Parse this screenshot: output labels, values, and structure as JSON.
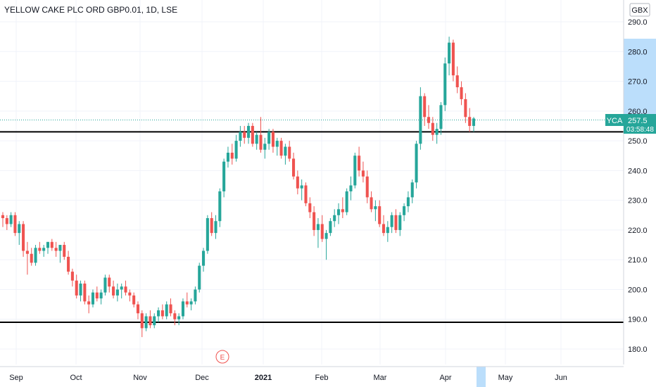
{
  "chart_data": {
    "type": "candlestick",
    "title": "YELLOW CAKE PLC ORD GBP0.01, 1D, LSE",
    "currency": "GBX",
    "ticker_badge": "YCA",
    "last_price": "257.5",
    "countdown": "03:58:48",
    "ylim": [
      175,
      295
    ],
    "y_ticks": [
      "180.0",
      "190.0",
      "200.0",
      "210.0",
      "220.0",
      "230.0",
      "240.0",
      "250.0",
      "260.0",
      "270.0",
      "280.0",
      "290.0"
    ],
    "x_labels": [
      "Sep",
      "Oct",
      "Nov",
      "Dec",
      "2021",
      "Feb",
      "Mar",
      "Apr",
      "May",
      "Jun"
    ],
    "horizontal_levels": [
      253.0,
      189.0
    ],
    "earnings_marker": "E",
    "grid": true,
    "colors": {
      "up": "#26a69a",
      "down": "#ef5350",
      "level": "#000000",
      "badge": "#26a69a",
      "axis_highlight": "#bbdefb"
    },
    "candles": [
      [
        225,
        226,
        221,
        224
      ],
      [
        224,
        225,
        220,
        222
      ],
      [
        222,
        226,
        221,
        225
      ],
      [
        225,
        226,
        218,
        219
      ],
      [
        219,
        223,
        215,
        222
      ],
      [
        222,
        223,
        211,
        213
      ],
      [
        213,
        216,
        205,
        212
      ],
      [
        212,
        214,
        208,
        209
      ],
      [
        209,
        215,
        208,
        214
      ],
      [
        214,
        216,
        212,
        213
      ],
      [
        213,
        215,
        211,
        214
      ],
      [
        214,
        216,
        212,
        216
      ],
      [
        216,
        217,
        213,
        214
      ],
      [
        214,
        216,
        211,
        213
      ],
      [
        213,
        215,
        209,
        215
      ],
      [
        215,
        216,
        210,
        211
      ],
      [
        211,
        213,
        205,
        206
      ],
      [
        206,
        207,
        201,
        203
      ],
      [
        203,
        205,
        197,
        198
      ],
      [
        198,
        203,
        196,
        202
      ],
      [
        202,
        203,
        195,
        196
      ],
      [
        196,
        198,
        192,
        195
      ],
      [
        195,
        200,
        194,
        199
      ],
      [
        199,
        201,
        196,
        197
      ],
      [
        197,
        200,
        195,
        199
      ],
      [
        199,
        205,
        198,
        204
      ],
      [
        204,
        205,
        199,
        201
      ],
      [
        201,
        203,
        197,
        198
      ],
      [
        198,
        202,
        196,
        200
      ],
      [
        200,
        202,
        197,
        201
      ],
      [
        201,
        203,
        198,
        199
      ],
      [
        199,
        200,
        196,
        198
      ],
      [
        198,
        199,
        194,
        195
      ],
      [
        195,
        196,
        190,
        192
      ],
      [
        192,
        193,
        184,
        187
      ],
      [
        187,
        192,
        186,
        191
      ],
      [
        191,
        193,
        187,
        188
      ],
      [
        188,
        192,
        187,
        191
      ],
      [
        191,
        194,
        189,
        193
      ],
      [
        193,
        195,
        190,
        191
      ],
      [
        191,
        196,
        190,
        195
      ],
      [
        195,
        197,
        191,
        192
      ],
      [
        192,
        193,
        188,
        190
      ],
      [
        190,
        192,
        188,
        191
      ],
      [
        191,
        197,
        190,
        196
      ],
      [
        196,
        199,
        194,
        195
      ],
      [
        195,
        197,
        193,
        196
      ],
      [
        196,
        201,
        195,
        200
      ],
      [
        200,
        209,
        199,
        208
      ],
      [
        208,
        214,
        206,
        213
      ],
      [
        213,
        225,
        212,
        224
      ],
      [
        224,
        226,
        218,
        219
      ],
      [
        219,
        225,
        217,
        223
      ],
      [
        223,
        234,
        221,
        233
      ],
      [
        233,
        244,
        231,
        243
      ],
      [
        243,
        248,
        241,
        246
      ],
      [
        246,
        249,
        242,
        244
      ],
      [
        244,
        252,
        243,
        250
      ],
      [
        250,
        255,
        248,
        253
      ],
      [
        253,
        255,
        249,
        251
      ],
      [
        251,
        256,
        249,
        255
      ],
      [
        255,
        256,
        248,
        249
      ],
      [
        249,
        253,
        247,
        252
      ],
      [
        252,
        258,
        246,
        247
      ],
      [
        247,
        251,
        244,
        249
      ],
      [
        249,
        254,
        247,
        253
      ],
      [
        253,
        254,
        246,
        248
      ],
      [
        248,
        251,
        245,
        250
      ],
      [
        250,
        251,
        244,
        245
      ],
      [
        245,
        249,
        242,
        248
      ],
      [
        248,
        250,
        243,
        244
      ],
      [
        244,
        246,
        237,
        238
      ],
      [
        238,
        240,
        232,
        234
      ],
      [
        234,
        237,
        230,
        235
      ],
      [
        235,
        236,
        228,
        229
      ],
      [
        229,
        231,
        224,
        226
      ],
      [
        226,
        228,
        218,
        220
      ],
      [
        220,
        224,
        214,
        222
      ],
      [
        222,
        225,
        216,
        217
      ],
      [
        217,
        220,
        210,
        219
      ],
      [
        219,
        224,
        218,
        223
      ],
      [
        223,
        227,
        221,
        225
      ],
      [
        225,
        229,
        222,
        227
      ],
      [
        227,
        231,
        224,
        226
      ],
      [
        226,
        234,
        225,
        233
      ],
      [
        233,
        238,
        230,
        235
      ],
      [
        235,
        246,
        234,
        245
      ],
      [
        245,
        248,
        238,
        240
      ],
      [
        240,
        243,
        236,
        238
      ],
      [
        238,
        240,
        229,
        231
      ],
      [
        231,
        233,
        226,
        227
      ],
      [
        227,
        230,
        223,
        228
      ],
      [
        228,
        230,
        221,
        222
      ],
      [
        222,
        225,
        218,
        219
      ],
      [
        219,
        223,
        216,
        221
      ],
      [
        221,
        226,
        219,
        225
      ],
      [
        225,
        227,
        219,
        220
      ],
      [
        220,
        226,
        218,
        225
      ],
      [
        225,
        229,
        223,
        228
      ],
      [
        228,
        233,
        226,
        231
      ],
      [
        231,
        237,
        229,
        236
      ],
      [
        236,
        250,
        234,
        249
      ],
      [
        249,
        268,
        247,
        265
      ],
      [
        265,
        266,
        255,
        258
      ],
      [
        258,
        262,
        254,
        256
      ],
      [
        256,
        258,
        250,
        252
      ],
      [
        252,
        256,
        249,
        254
      ],
      [
        254,
        263,
        252,
        262
      ],
      [
        262,
        278,
        260,
        276
      ],
      [
        276,
        285,
        272,
        283
      ],
      [
        283,
        284,
        270,
        272
      ],
      [
        272,
        275,
        266,
        268
      ],
      [
        268,
        270,
        262,
        264
      ],
      [
        264,
        266,
        256,
        258
      ],
      [
        258,
        261,
        253,
        255
      ],
      [
        255,
        258,
        253,
        257.5
      ]
    ]
  }
}
